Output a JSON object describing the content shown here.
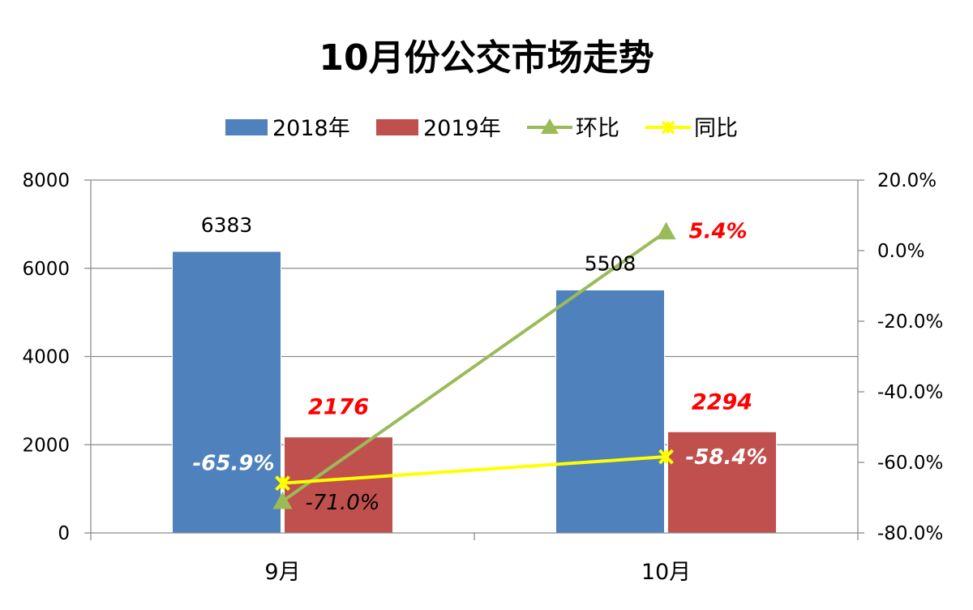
{
  "chart_data": {
    "type": "bar",
    "title": "10月份公交市场走势",
    "categories": [
      "9月",
      "10月"
    ],
    "series": [
      {
        "name": "2018年",
        "kind": "bar",
        "axis": "left",
        "color": "#4f81bd",
        "values": [
          6383,
          5508
        ],
        "labels": [
          "6383",
          "5508"
        ]
      },
      {
        "name": "2019年",
        "kind": "bar",
        "axis": "left",
        "color": "#c0504d",
        "values": [
          2176,
          2294
        ],
        "labels": [
          "2176",
          "2294"
        ]
      },
      {
        "name": "环比",
        "kind": "line",
        "axis": "right",
        "marker": "triangle",
        "color": "#9bbb59",
        "values": [
          -71.0,
          5.4
        ],
        "labels": [
          "-71.0%",
          "5.4%"
        ]
      },
      {
        "name": "同比",
        "kind": "line",
        "axis": "right",
        "marker": "x",
        "color": "#ffff00",
        "values": [
          -65.9,
          -58.4
        ],
        "labels": [
          "-65.9%",
          "-58.4%"
        ]
      }
    ],
    "y_left": {
      "min": 0,
      "max": 8000,
      "ticks": [
        "0",
        "2000",
        "4000",
        "6000",
        "8000"
      ]
    },
    "y_right": {
      "min": -80,
      "max": 20,
      "ticks": [
        "-80.0%",
        "-60.0%",
        "-40.0%",
        "-20.0%",
        "0.0%",
        "20.0%"
      ]
    },
    "grid": true,
    "legend_position": "top"
  }
}
